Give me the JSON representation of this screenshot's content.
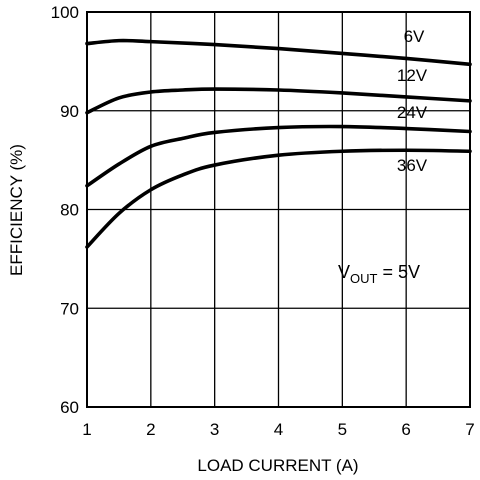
{
  "chart_data": {
    "type": "line",
    "xlabel": "LOAD CURRENT (A)",
    "ylabel": "EFFICIENCY (%)",
    "xlim": [
      1,
      7
    ],
    "ylim": [
      60,
      100
    ],
    "x_ticks": [
      1,
      2,
      3,
      4,
      5,
      6,
      7
    ],
    "y_ticks": [
      60,
      70,
      80,
      90,
      100
    ],
    "grid": true,
    "series": [
      {
        "name": "6V",
        "x": [
          1,
          1.5,
          2,
          3,
          4,
          5,
          6,
          7
        ],
        "y": [
          96.8,
          97.1,
          97.0,
          96.7,
          96.3,
          95.8,
          95.3,
          94.7
        ]
      },
      {
        "name": "12V",
        "x": [
          1,
          1.5,
          2,
          2.5,
          3,
          4,
          5,
          6,
          7
        ],
        "y": [
          89.8,
          91.3,
          91.9,
          92.1,
          92.2,
          92.1,
          91.8,
          91.4,
          91.0
        ]
      },
      {
        "name": "24V",
        "x": [
          1,
          1.5,
          2,
          2.5,
          3,
          4,
          5,
          6,
          7
        ],
        "y": [
          82.4,
          84.6,
          86.4,
          87.2,
          87.8,
          88.3,
          88.4,
          88.2,
          87.9
        ]
      },
      {
        "name": "36V",
        "x": [
          1,
          1.5,
          2,
          2.5,
          3,
          4,
          5,
          6,
          7
        ],
        "y": [
          76.2,
          79.6,
          82.0,
          83.5,
          84.5,
          85.5,
          85.9,
          86.0,
          85.9
        ]
      }
    ],
    "annotation": {
      "main": "V",
      "sub": "OUT",
      "rest": " = 5V"
    }
  }
}
